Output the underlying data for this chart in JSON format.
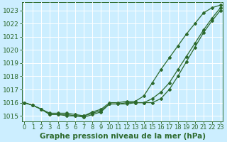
{
  "xlabel": "Graphe pression niveau de la mer (hPa)",
  "hours": [
    0,
    1,
    2,
    3,
    4,
    5,
    6,
    7,
    8,
    9,
    10,
    11,
    12,
    13,
    14,
    15,
    16,
    17,
    18,
    19,
    20,
    21,
    22,
    23
  ],
  "line_upper": [
    1016.0,
    1015.8,
    1015.5,
    1015.2,
    1015.2,
    1015.2,
    1015.1,
    1015.0,
    1015.3,
    1015.5,
    1016.0,
    1016.0,
    1016.1,
    1016.1,
    1016.5,
    1017.5,
    1018.5,
    1019.4,
    1020.3,
    1021.2,
    1022.0,
    1022.8,
    1023.2,
    1023.4
  ],
  "line_mid": [
    1016.0,
    1015.8,
    1015.5,
    1015.1,
    1015.1,
    1015.1,
    1015.0,
    1015.0,
    1015.2,
    1015.4,
    1015.9,
    1015.9,
    1016.0,
    1016.0,
    1016.0,
    1016.3,
    1016.8,
    1017.5,
    1018.5,
    1019.5,
    1020.5,
    1021.5,
    1022.4,
    1023.2
  ],
  "line_lower": [
    1016.0,
    1015.8,
    1015.5,
    1015.1,
    1015.1,
    1015.0,
    1015.0,
    1014.9,
    1015.1,
    1015.3,
    1015.9,
    1015.9,
    1015.9,
    1016.0,
    1016.0,
    1016.0,
    1016.3,
    1017.0,
    1018.0,
    1019.1,
    1020.2,
    1021.3,
    1022.2,
    1023.0
  ],
  "ylim_min": 1014.6,
  "ylim_max": 1023.6,
  "yticks": [
    1015,
    1016,
    1017,
    1018,
    1019,
    1020,
    1021,
    1022,
    1023
  ],
  "line_color": "#2d6a2d",
  "bg_color": "#cceeff",
  "grid_color": "#ffffff",
  "label_color": "#2d6a2d",
  "tick_color": "#2d6a2d",
  "font_size": 6.5,
  "xlabel_fontsize": 7.5,
  "marker": "D",
  "marker_size": 2.0,
  "line_width": 0.9
}
